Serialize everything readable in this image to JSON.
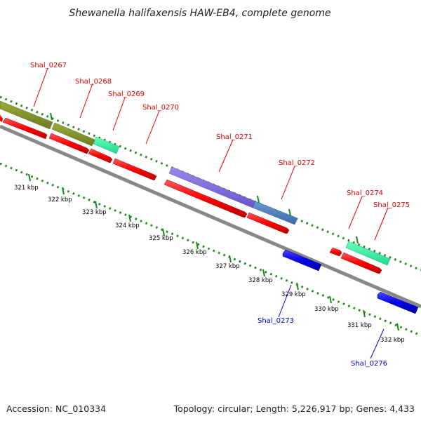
{
  "title": "Shewanella halifaxensis HAW-EB4, complete genome",
  "footer": {
    "accession": "Accession: NC_010334",
    "summary": "Topology: circular; Length: 5,226,917 bp; Genes: 4,433"
  },
  "colors": {
    "forward_cds": "#ff0000",
    "reverse_cds": "#0000ee",
    "backbone": "#888888",
    "ticks": "#1a8a1a",
    "forward_label": "#dd0000",
    "reverse_label": "#0000cc"
  },
  "kbp_labels": [
    "321 kbp",
    "322 kbp",
    "323 kbp",
    "324 kbp",
    "325 kbp",
    "326 kbp",
    "327 kbp",
    "328 kbp",
    "329 kbp",
    "330 kbp",
    "331 kbp",
    "332 kbp"
  ],
  "genes": [
    {
      "id": "Shal_0267",
      "strand": "forward"
    },
    {
      "id": "Shal_0268",
      "strand": "forward"
    },
    {
      "id": "Shal_0269",
      "strand": "forward"
    },
    {
      "id": "Shal_0270",
      "strand": "forward"
    },
    {
      "id": "Shal_0271",
      "strand": "forward"
    },
    {
      "id": "Shal_0272",
      "strand": "forward"
    },
    {
      "id": "Shal_0273",
      "strand": "reverse"
    },
    {
      "id": "Shal_0274",
      "strand": "forward"
    },
    {
      "id": "Shal_0275",
      "strand": "forward"
    },
    {
      "id": "Shal_0276",
      "strand": "reverse"
    }
  ]
}
